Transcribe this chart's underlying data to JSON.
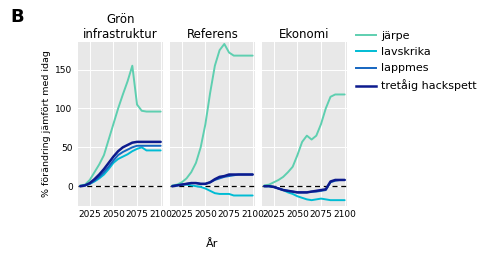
{
  "title_label": "B",
  "panel_titles": [
    "Grön\ninfrastruktur",
    "Referens",
    "Ekonomi"
  ],
  "xlabel": "År",
  "ylabel": "% förändring jämfört med idag",
  "years": [
    2015,
    2020,
    2025,
    2030,
    2035,
    2040,
    2045,
    2050,
    2055,
    2060,
    2065,
    2070,
    2075,
    2080,
    2085,
    2090,
    2095,
    2100
  ],
  "series": {
    "järpe": {
      "color": "#5ecfb0",
      "lw": 1.4,
      "panels": [
        [
          1,
          2,
          8,
          18,
          28,
          40,
          60,
          80,
          100,
          118,
          135,
          155,
          105,
          97,
          96,
          96,
          96,
          96
        ],
        [
          1,
          2,
          5,
          10,
          18,
          30,
          50,
          80,
          120,
          155,
          175,
          183,
          172,
          168,
          168,
          168,
          168,
          168
        ],
        [
          1,
          2,
          5,
          8,
          12,
          18,
          25,
          40,
          57,
          65,
          60,
          65,
          80,
          100,
          115,
          118,
          118,
          118
        ]
      ]
    },
    "lavskrika": {
      "color": "#00bcd4",
      "lw": 1.4,
      "panels": [
        [
          0,
          1,
          3,
          6,
          10,
          15,
          22,
          30,
          35,
          38,
          41,
          45,
          48,
          50,
          46,
          46,
          46,
          46
        ],
        [
          0,
          1,
          2,
          2,
          1,
          0,
          -1,
          -3,
          -6,
          -9,
          -10,
          -10,
          -10,
          -12,
          -12,
          -12,
          -12,
          -12
        ],
        [
          0,
          0,
          -1,
          -3,
          -5,
          -8,
          -10,
          -13,
          -15,
          -17,
          -18,
          -17,
          -16,
          -17,
          -18,
          -18,
          -18,
          -18
        ]
      ]
    },
    "lappmes": {
      "color": "#1565c0",
      "lw": 1.4,
      "panels": [
        [
          0,
          1,
          3,
          7,
          12,
          18,
          25,
          33,
          40,
          44,
          47,
          50,
          52,
          52,
          52,
          52,
          52,
          52
        ],
        [
          0,
          1,
          2,
          3,
          4,
          4,
          3,
          3,
          5,
          8,
          10,
          12,
          13,
          14,
          15,
          15,
          15,
          15
        ],
        [
          0,
          0,
          -1,
          -3,
          -5,
          -6,
          -7,
          -8,
          -8,
          -8,
          -7,
          -7,
          -6,
          -5,
          5,
          7,
          8,
          8
        ]
      ]
    },
    "tretåig hackspett": {
      "color": "#0d1b8e",
      "lw": 1.8,
      "panels": [
        [
          0,
          1,
          4,
          9,
          15,
          22,
          30,
          38,
          45,
          50,
          53,
          56,
          57,
          57,
          57,
          57,
          57,
          57
        ],
        [
          0,
          1,
          2,
          3,
          4,
          4,
          3,
          3,
          5,
          9,
          12,
          13,
          15,
          15,
          15,
          15,
          15,
          15
        ],
        [
          0,
          0,
          -1,
          -3,
          -5,
          -6,
          -7,
          -8,
          -8,
          -8,
          -7,
          -6,
          -5,
          -4,
          6,
          8,
          8,
          8
        ]
      ]
    }
  },
  "ylim": [
    -25,
    185
  ],
  "yticks": [
    0,
    50,
    100,
    150
  ],
  "ytick_labels": [
    "0",
    "50",
    "100",
    "150"
  ],
  "xticks": [
    2025,
    2050,
    2075,
    2100
  ],
  "bg_color": "#e8e8e8",
  "legend_species": [
    "järpe",
    "lavskrika",
    "lappmes",
    "tretåig hackspett"
  ],
  "legend_colors": [
    "#5ecfb0",
    "#00bcd4",
    "#1565c0",
    "#0d1b8e"
  ],
  "legend_lw": [
    1.4,
    1.4,
    1.4,
    1.8
  ],
  "fig_width": 5.0,
  "fig_height": 2.57,
  "fig_dpi": 100
}
